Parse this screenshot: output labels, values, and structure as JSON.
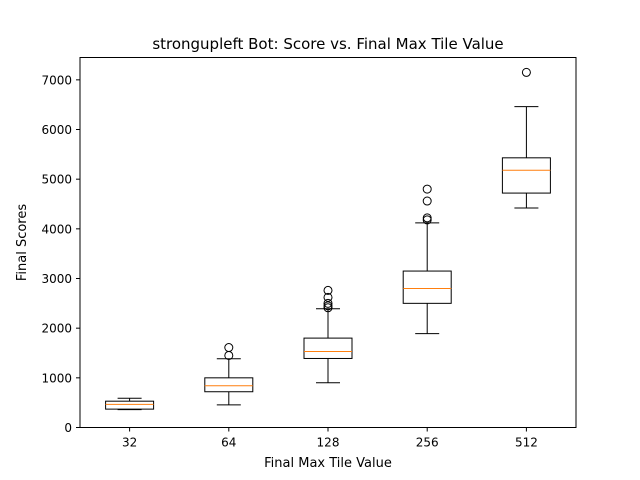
{
  "chart_data": {
    "type": "boxplot",
    "title": "strongupleft Bot: Score vs. Final Max Tile Value",
    "xlabel": "Final Max Tile Value",
    "ylabel": "Final Scores",
    "ylim": [
      0,
      7450
    ],
    "y_ticks": [
      0,
      1000,
      2000,
      3000,
      4000,
      5000,
      6000,
      7000
    ],
    "grid": false,
    "legend": "none",
    "categories": [
      "32",
      "64",
      "128",
      "256",
      "512"
    ],
    "boxes": [
      {
        "category": "32",
        "whisker_low": 360,
        "q1": 370,
        "median": 465,
        "q3": 530,
        "whisker_high": 590,
        "outliers": []
      },
      {
        "category": "64",
        "whisker_low": 455,
        "q1": 720,
        "median": 840,
        "q3": 1000,
        "whisker_high": 1385,
        "outliers": [
          1450,
          1610
        ]
      },
      {
        "category": "128",
        "whisker_low": 900,
        "q1": 1390,
        "median": 1530,
        "q3": 1800,
        "whisker_high": 2390,
        "outliers": [
          2410,
          2450,
          2500,
          2620,
          2760
        ]
      },
      {
        "category": "256",
        "whisker_low": 1890,
        "q1": 2500,
        "median": 2800,
        "q3": 3150,
        "whisker_high": 4120,
        "outliers": [
          4180,
          4220,
          4560,
          4800
        ]
      },
      {
        "category": "512",
        "whisker_low": 4420,
        "q1": 4720,
        "median": 5180,
        "q3": 5430,
        "whisker_high": 6460,
        "outliers": [
          7150
        ]
      }
    ]
  },
  "colors": {
    "box": "#000000",
    "median": "#ff7f0e",
    "background": "#ffffff"
  }
}
